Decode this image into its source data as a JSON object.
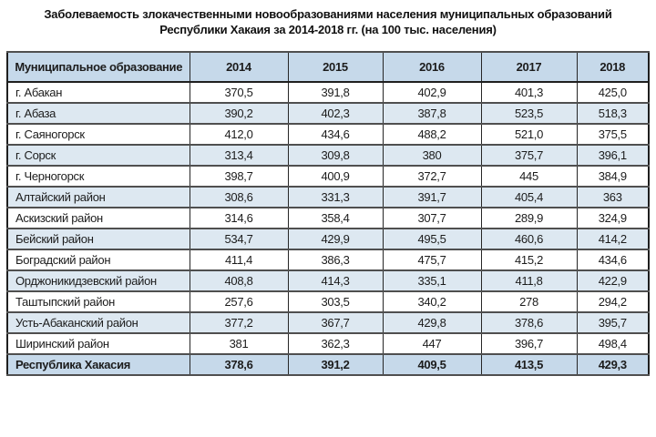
{
  "title": {
    "line1": "Заболеваемость злокачественными новообразованиями населения муниципальных образований",
    "line2": "Республики Хакаия за 2014-2018 гг. (на 100 тыс. населения)"
  },
  "chart_data": {
    "type": "table",
    "title": "Заболеваемость злокачественными новообразованиями населения муниципальных образований Республики Хакаия за 2014-2018 гг. (на 100 тыс. населения)",
    "columns": [
      "Муниципальное образование",
      "2014",
      "2015",
      "2016",
      "2017",
      "2018"
    ],
    "rows": [
      {
        "name": "г. Абакан",
        "values": [
          "370,5",
          "391,8",
          "402,9",
          "401,3",
          "425,0"
        ]
      },
      {
        "name": "г. Абаза",
        "values": [
          "390,2",
          "402,3",
          "387,8",
          "523,5",
          "518,3"
        ]
      },
      {
        "name": "г. Саяногорск",
        "values": [
          "412,0",
          "434,6",
          "488,2",
          "521,0",
          "375,5"
        ]
      },
      {
        "name": "г. Сорск",
        "values": [
          "313,4",
          "309,8",
          "380",
          "375,7",
          "396,1"
        ]
      },
      {
        "name": "г. Черногорск",
        "values": [
          "398,7",
          "400,9",
          "372,7",
          "445",
          "384,9"
        ]
      },
      {
        "name": "Алтайский район",
        "values": [
          "308,6",
          "331,3",
          "391,7",
          "405,4",
          "363"
        ]
      },
      {
        "name": "Аскизский район",
        "values": [
          "314,6",
          "358,4",
          "307,7",
          "289,9",
          "324,9"
        ]
      },
      {
        "name": "Бейский район",
        "values": [
          "534,7",
          "429,9",
          "495,5",
          "460,6",
          "414,2"
        ]
      },
      {
        "name": "Боградский район",
        "values": [
          "411,4",
          "386,3",
          "475,7",
          "415,2",
          "434,6"
        ]
      },
      {
        "name": "Орджоникидзевский район",
        "values": [
          "408,8",
          "414,3",
          "335,1",
          "411,8",
          "422,9"
        ]
      },
      {
        "name": "Таштыпский район",
        "values": [
          "257,6",
          "303,5",
          "340,2",
          "278",
          "294,2"
        ]
      },
      {
        "name": "Усть-Абаканский район",
        "values": [
          "377,2",
          "367,7",
          "429,8",
          "378,6",
          "395,7"
        ]
      },
      {
        "name": "Ширинский район",
        "values": [
          "381",
          "362,3",
          "447",
          "396,7",
          "498,4"
        ]
      }
    ],
    "total_row": {
      "name": "Республика Хакасия",
      "values": [
        "378,6",
        "391,2",
        "409,5",
        "413,5",
        "429,3"
      ]
    },
    "legend_position": "none",
    "grid": true
  },
  "colors": {
    "header_bg": "#c6d9ea",
    "alt_row_bg": "#dde8f1",
    "total_row_bg": "#c6d9ea",
    "border_outer": "#1f1f1f",
    "border_inner": "#4f4f4f",
    "text": "#1c1c1c"
  }
}
